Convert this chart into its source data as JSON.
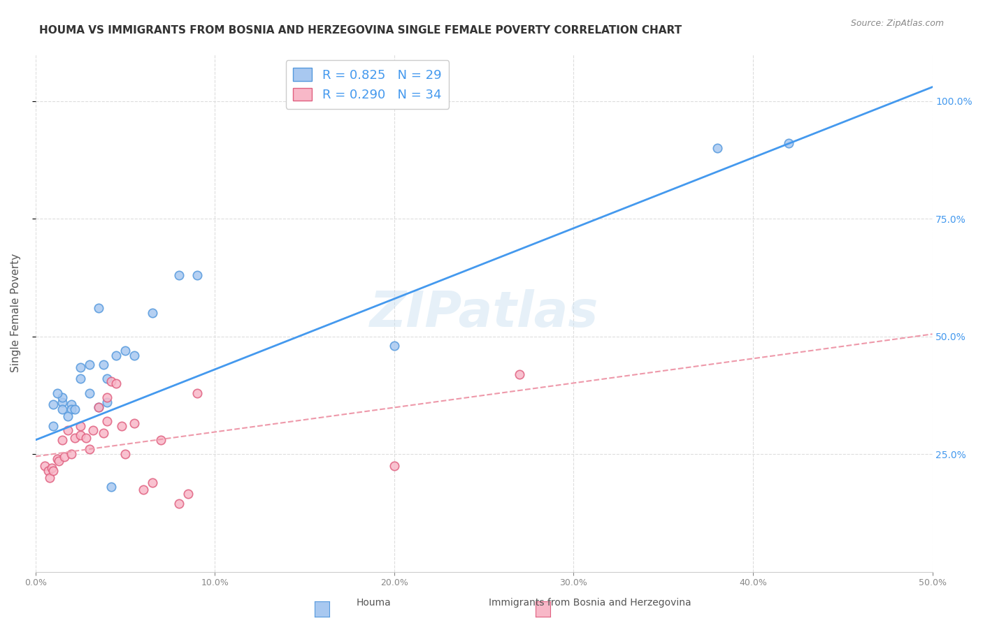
{
  "title": "HOUMA VS IMMIGRANTS FROM BOSNIA AND HERZEGOVINA SINGLE FEMALE POVERTY CORRELATION CHART",
  "source": "Source: ZipAtlas.com",
  "xlabel_bottom": "",
  "ylabel": "Single Female Poverty",
  "xlim": [
    0.0,
    0.5
  ],
  "ylim": [
    0.0,
    1.05
  ],
  "xtick_labels": [
    "0.0%",
    "10.0%",
    "20.0%",
    "30.0%",
    "40.0%",
    "50.0%"
  ],
  "xtick_values": [
    0.0,
    0.1,
    0.2,
    0.3,
    0.4,
    0.5
  ],
  "ytick_labels": [
    "25.0%",
    "50.0%",
    "75.0%",
    "100.0%"
  ],
  "ytick_values": [
    0.25,
    0.5,
    0.75,
    1.0
  ],
  "houma_color": "#a8c8f0",
  "houma_edge_color": "#5599dd",
  "immigrants_color": "#f8b8c8",
  "immigrants_edge_color": "#e06080",
  "houma_R": 0.825,
  "houma_N": 29,
  "immigrants_R": 0.29,
  "immigrants_N": 34,
  "legend_label_houma": "Houma",
  "legend_label_immigrants": "Immigrants from Bosnia and Herzegovina",
  "watermark": "ZIPatlas",
  "houma_scatter_x": [
    0.01,
    0.01,
    0.02,
    0.02,
    0.015,
    0.015,
    0.015,
    0.012,
    0.018,
    0.022,
    0.025,
    0.03,
    0.025,
    0.03,
    0.035,
    0.04,
    0.04,
    0.045,
    0.035,
    0.038,
    0.042,
    0.05,
    0.055,
    0.065,
    0.08,
    0.09,
    0.2,
    0.38,
    0.42
  ],
  "houma_scatter_y": [
    0.355,
    0.31,
    0.355,
    0.345,
    0.36,
    0.37,
    0.345,
    0.38,
    0.33,
    0.345,
    0.435,
    0.44,
    0.41,
    0.38,
    0.35,
    0.41,
    0.36,
    0.46,
    0.56,
    0.44,
    0.18,
    0.47,
    0.46,
    0.55,
    0.63,
    0.63,
    0.48,
    0.9,
    0.91
  ],
  "immigrants_scatter_x": [
    0.005,
    0.007,
    0.008,
    0.009,
    0.01,
    0.012,
    0.013,
    0.015,
    0.016,
    0.018,
    0.02,
    0.022,
    0.025,
    0.025,
    0.028,
    0.03,
    0.032,
    0.035,
    0.038,
    0.04,
    0.04,
    0.042,
    0.045,
    0.048,
    0.05,
    0.055,
    0.06,
    0.065,
    0.07,
    0.08,
    0.085,
    0.09,
    0.2,
    0.27
  ],
  "immigrants_scatter_y": [
    0.225,
    0.215,
    0.2,
    0.22,
    0.215,
    0.24,
    0.235,
    0.28,
    0.245,
    0.3,
    0.25,
    0.285,
    0.29,
    0.31,
    0.285,
    0.26,
    0.3,
    0.35,
    0.295,
    0.32,
    0.37,
    0.405,
    0.4,
    0.31,
    0.25,
    0.315,
    0.175,
    0.19,
    0.28,
    0.145,
    0.165,
    0.38,
    0.225,
    0.42
  ],
  "houma_line_color": "#4499ee",
  "immigrants_line_color": "#ee99aa",
  "houma_line_x": [
    0.0,
    0.5
  ],
  "houma_line_y": [
    0.28,
    1.03
  ],
  "immigrants_line_x": [
    0.0,
    0.5
  ],
  "immigrants_line_y": [
    0.245,
    0.505
  ],
  "background_color": "#ffffff",
  "grid_color": "#dddddd",
  "title_color": "#333333",
  "axis_label_color": "#555555",
  "right_tick_color": "#4499ee",
  "legend_R_color": "#4499ee",
  "legend_N_color": "#33aa33"
}
